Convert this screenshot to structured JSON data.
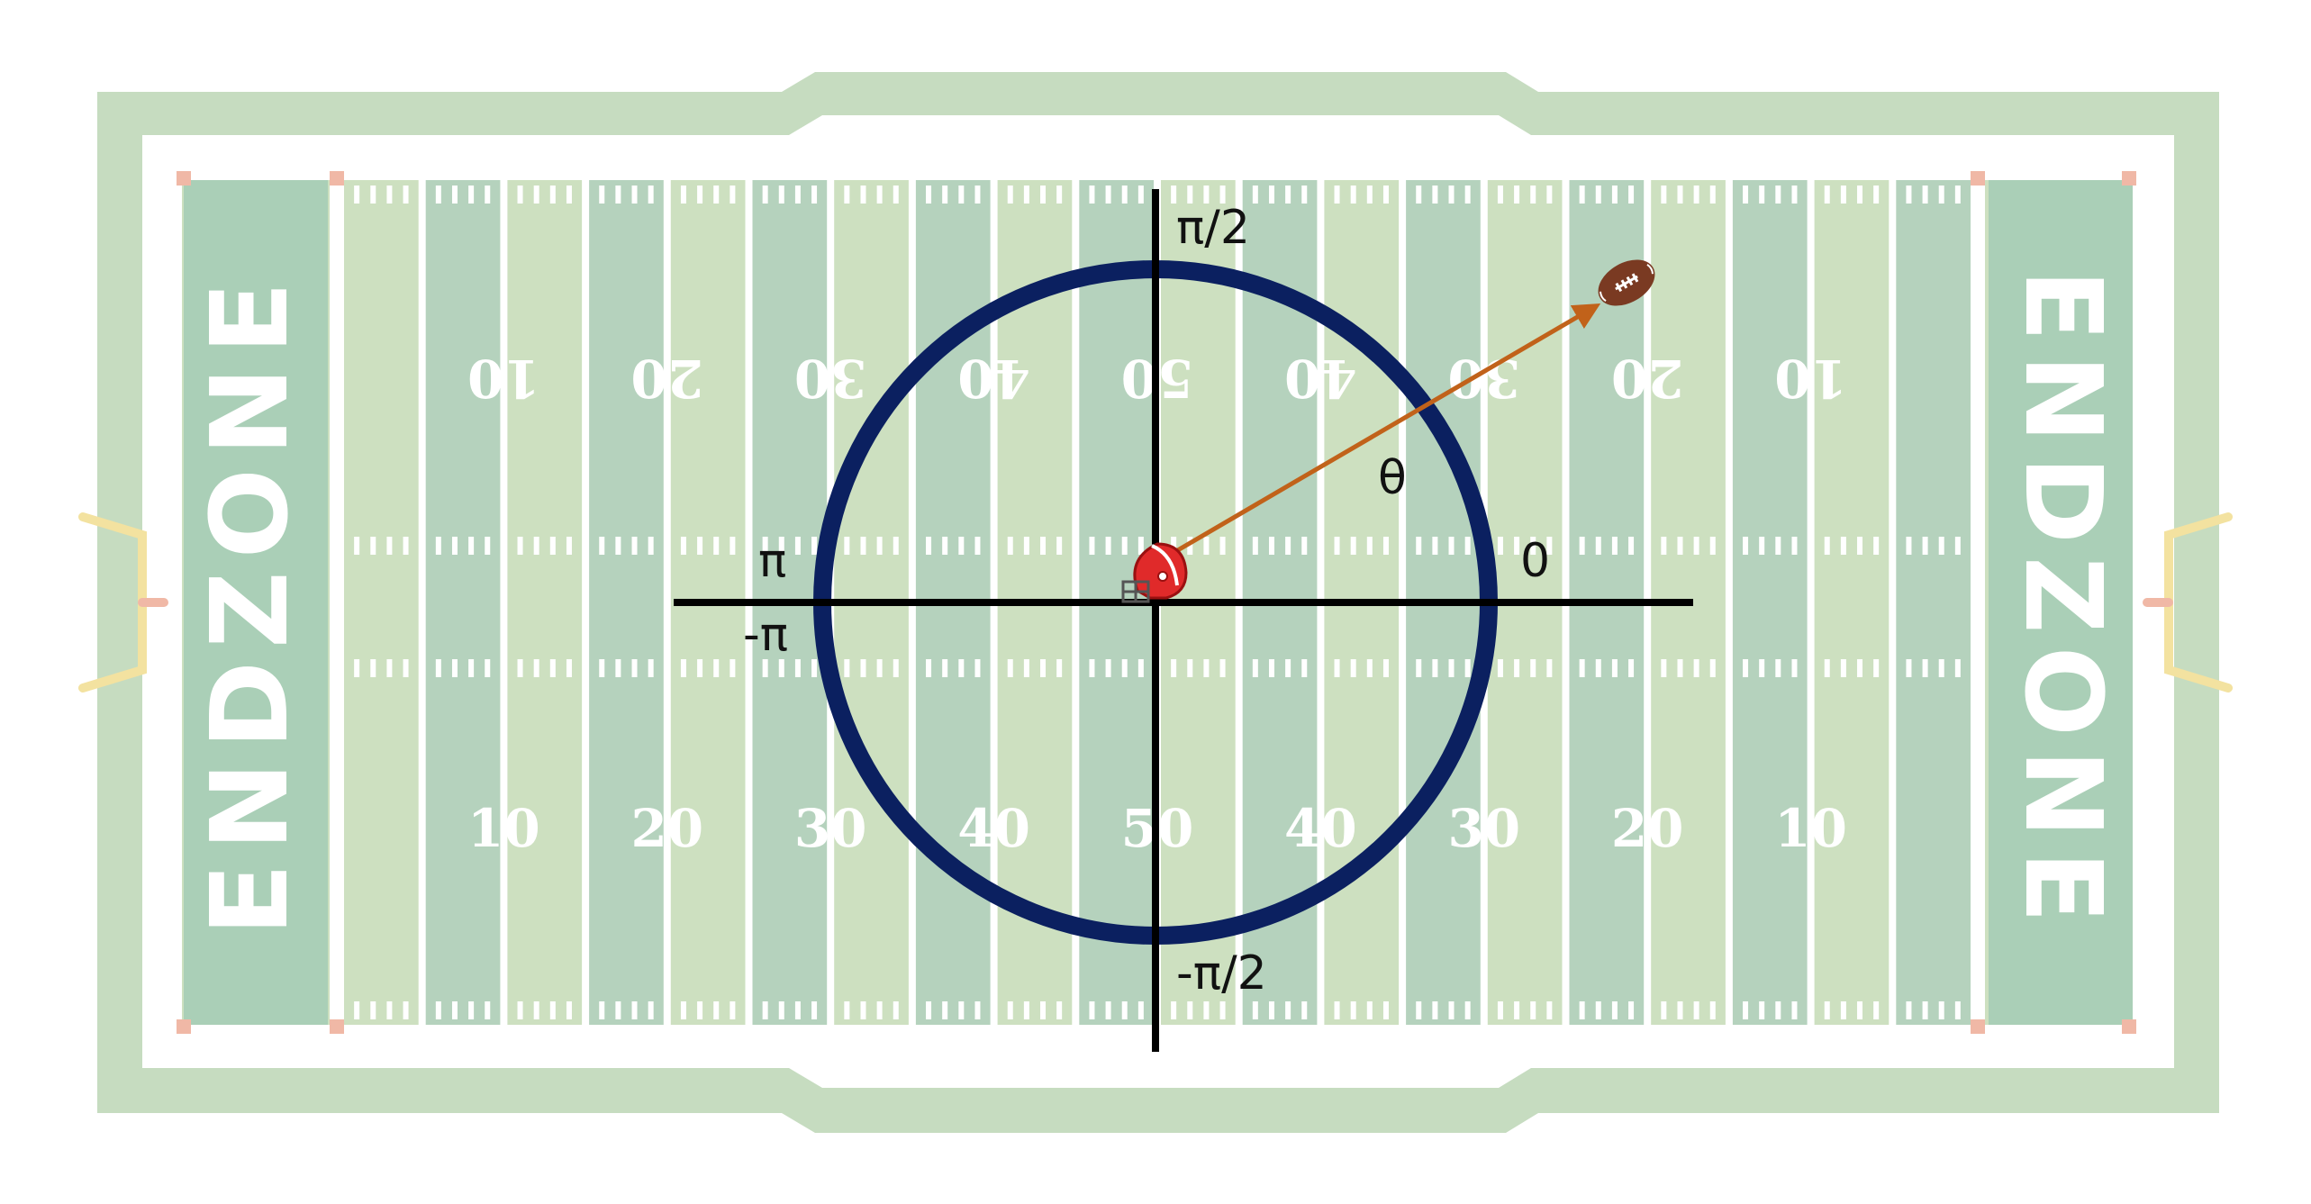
{
  "endzone_label": "ENDZONE",
  "yard_numbers": [
    "10",
    "20",
    "30",
    "40",
    "50",
    "40",
    "30",
    "20",
    "10"
  ],
  "angle_labels": {
    "top": "π/2",
    "bottom": "-π/2",
    "right": "0",
    "left_upper": "π",
    "left_lower": "-π",
    "theta": "θ"
  },
  "colors": {
    "field_outer": "#c6dcc0",
    "stripe_light": "#cde0c0",
    "stripe_dark": "#b5d2bd",
    "endzone": "#aacfb7",
    "circle": "#0b2060",
    "vector": "#c1621a",
    "axes": "#000000"
  },
  "icons": [
    "football-helmet-icon",
    "football-icon",
    "goalpost-icon"
  ]
}
